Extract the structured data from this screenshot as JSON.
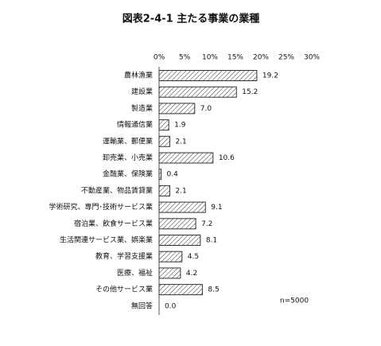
{
  "chart_data": {
    "type": "hbar",
    "title": "図表2-4-1 主たる事業の業種",
    "categories": [
      "農林漁業",
      "建設業",
      "製造業",
      "情報通信業",
      "運輸業、郵便業",
      "卸売業、小売業",
      "金融業、保険業",
      "不動産業、物品賃貸業",
      "学術研究、専門･技術サービス業",
      "宿泊業、飲食サービス業",
      "生活関連サービス業、娯楽業",
      "教育、学習支援業",
      "医療、福祉",
      "その他サービス業",
      "無回答"
    ],
    "values": [
      19.2,
      15.2,
      7.0,
      1.9,
      2.1,
      10.6,
      0.4,
      2.1,
      9.1,
      7.2,
      8.1,
      4.5,
      4.2,
      8.5,
      0.0
    ],
    "value_labels": [
      "19.2",
      "15.2",
      "7.0",
      "1.9",
      "2.1",
      "10.6",
      "0.4",
      "2.1",
      "9.1",
      "7.2",
      "8.1",
      "4.5",
      "4.2",
      "8.5",
      "0.0"
    ],
    "xlim": [
      0,
      30
    ],
    "xticks": [
      {
        "value": 0,
        "label": "0%"
      },
      {
        "value": 5,
        "label": "5%"
      },
      {
        "value": 10,
        "label": "10%"
      },
      {
        "value": 15,
        "label": "15%"
      },
      {
        "value": 20,
        "label": "20%"
      },
      {
        "value": 25,
        "label": "25%"
      },
      {
        "value": 30,
        "label": "30%"
      }
    ],
    "color": "#333333",
    "annotation": "n=5000"
  }
}
